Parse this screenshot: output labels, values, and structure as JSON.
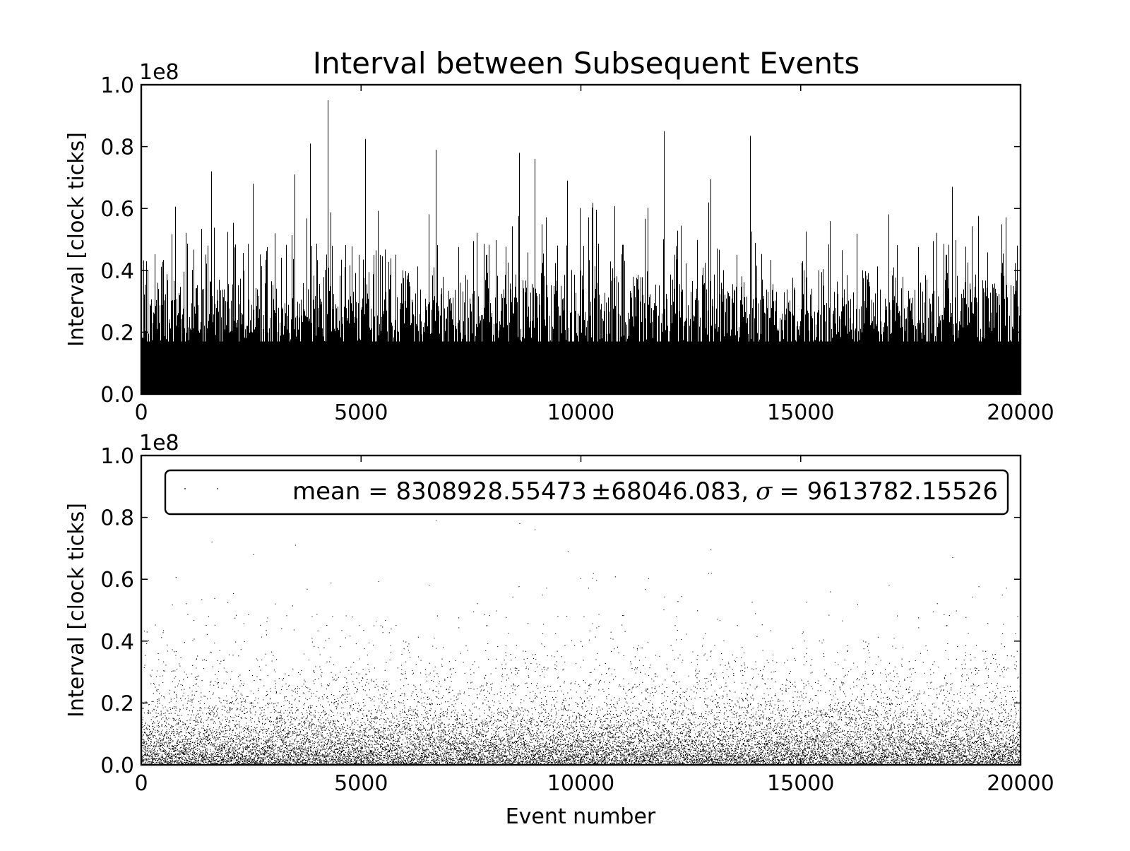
{
  "figure": {
    "title": "Interval between Subsequent Events"
  },
  "chart_data": [
    {
      "type": "bar",
      "panel": "top",
      "title": "Interval between Subsequent Events",
      "xlabel": "",
      "ylabel": "Interval [clock ticks]",
      "xlim": [
        0,
        20000
      ],
      "ylim": [
        0,
        100000000
      ],
      "y_offset_label": "1e8",
      "xticks": [
        "0",
        "5000",
        "10000",
        "15000",
        "20000"
      ],
      "yticks": [
        "0.0",
        "0.2",
        "0.4",
        "0.6",
        "0.8",
        "1.0"
      ],
      "grid": false,
      "color": "#000000",
      "n_events": 20000,
      "mean": 8308928.55473,
      "std": 9613782.15526,
      "max_events": [
        {
          "x": 4250,
          "y": 95000000
        },
        {
          "x": 11900,
          "y": 85000000
        },
        {
          "x": 13850,
          "y": 83500000
        },
        {
          "x": 5100,
          "y": 82500000
        },
        {
          "x": 3850,
          "y": 81000000
        },
        {
          "x": 6700,
          "y": 79000000
        },
        {
          "x": 8600,
          "y": 78000000
        },
        {
          "x": 8950,
          "y": 76000000
        },
        {
          "x": 1600,
          "y": 72000000
        },
        {
          "x": 3500,
          "y": 71000000
        },
        {
          "x": 12950,
          "y": 69500000
        },
        {
          "x": 9700,
          "y": 69000000
        },
        {
          "x": 2550,
          "y": 68000000
        },
        {
          "x": 18450,
          "y": 67000000
        }
      ]
    },
    {
      "type": "scatter",
      "panel": "bottom",
      "xlabel": "Event number",
      "ylabel": "Interval [clock ticks]",
      "xlim": [
        0,
        20000
      ],
      "ylim": [
        0,
        100000000
      ],
      "y_offset_label": "1e8",
      "xticks": [
        "0",
        "5000",
        "10000",
        "15000",
        "20000"
      ],
      "yticks": [
        "0.0",
        "0.2",
        "0.4",
        "0.6",
        "0.8",
        "1.0"
      ],
      "grid": false,
      "color": "#000000",
      "n_events": 20000,
      "legend": {
        "placement": "upper-right",
        "prefix": "mean = 8308928.55473",
        "pm": "±",
        "mid": "68046.083,",
        "sigma": "σ",
        "suffix": "= 9613782.15526"
      }
    }
  ]
}
